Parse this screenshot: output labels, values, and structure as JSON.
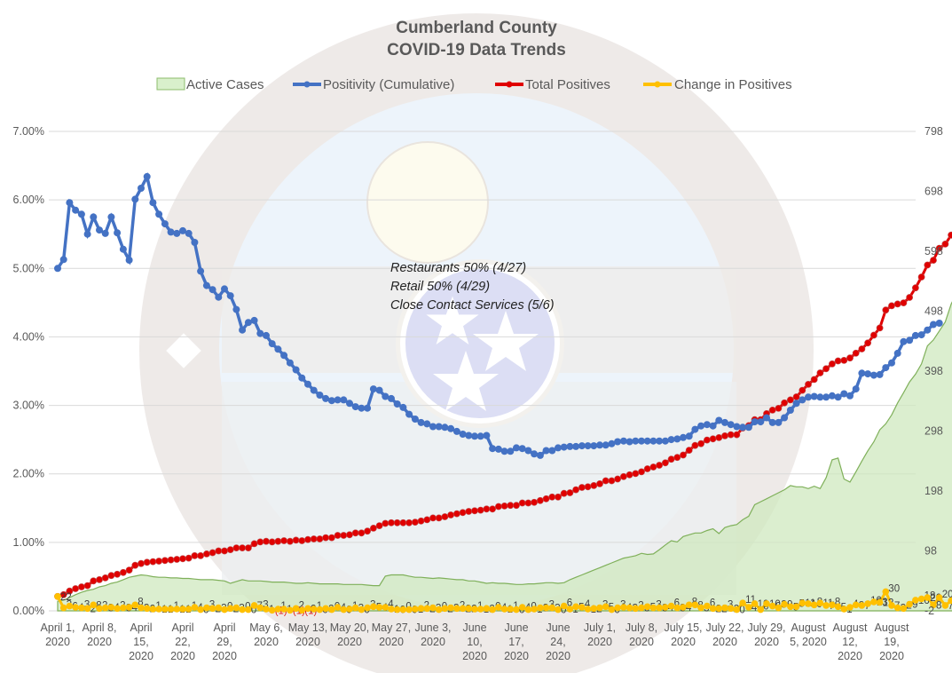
{
  "chart_data": {
    "type": "line",
    "title": "Cumberland County",
    "subtitle": "COVID-19 Data Trends",
    "legend": {
      "placement": "top",
      "entries": [
        {
          "name": "Active Cases",
          "kind": "area",
          "color": "#a9d18e"
        },
        {
          "name": "Positivity (Cumulative)",
          "kind": "line",
          "color": "#4472c4"
        },
        {
          "name": "Total Positives",
          "kind": "line",
          "color": "#e00000"
        },
        {
          "name": "Change in Positives",
          "kind": "line",
          "color": "#ffc000"
        }
      ]
    },
    "annotation": [
      "Restaurants 50% (4/27)",
      "Retail 50% (4/29)",
      "Close Contact Services (5/6)"
    ],
    "y_left": {
      "label": "",
      "range": [
        0,
        0.07
      ],
      "ticks": [
        "0.00%",
        "1.00%",
        "2.00%",
        "3.00%",
        "4.00%",
        "5.00%",
        "6.00%",
        "7.00%"
      ]
    },
    "y_right": {
      "label": "",
      "range": [
        -2,
        798
      ],
      "ticks": [
        "-2",
        "98",
        "198",
        "298",
        "398",
        "498",
        "598",
        "698",
        "798"
      ]
    },
    "grid": true,
    "x_ticks": [
      [
        "April 1,",
        "2020"
      ],
      [
        "April 8,",
        "2020"
      ],
      [
        "April",
        "15,",
        "2020"
      ],
      [
        "April",
        "22,",
        "2020"
      ],
      [
        "April",
        "29,",
        "2020"
      ],
      [
        "May 6,",
        "2020"
      ],
      [
        "May 13,",
        "2020"
      ],
      [
        "May 20,",
        "2020"
      ],
      [
        "May 27,",
        "2020"
      ],
      [
        "June 3,",
        "2020"
      ],
      [
        "June",
        "10,",
        "2020"
      ],
      [
        "June",
        "17,",
        "2020"
      ],
      [
        "June",
        "24,",
        "2020"
      ],
      [
        "July 1,",
        "2020"
      ],
      [
        "July 8,",
        "2020"
      ],
      [
        "July 15,",
        "2020"
      ],
      [
        "July 22,",
        "2020"
      ],
      [
        "July 29,",
        "2020"
      ],
      [
        "August",
        "5, 2020"
      ],
      [
        "August",
        "12,",
        "2020"
      ],
      [
        "August",
        "19,",
        "2020"
      ]
    ],
    "x_start": "2020-04-01",
    "x_days": 144,
    "series": {
      "positivity_pct": [
        5.0,
        5.13,
        5.96,
        5.85,
        5.79,
        5.5,
        5.75,
        5.56,
        5.51,
        5.75,
        5.52,
        5.28,
        5.12,
        6.01,
        6.17,
        6.34,
        5.96,
        5.79,
        5.65,
        5.53,
        5.51,
        5.55,
        5.51,
        5.38,
        4.96,
        4.75,
        4.69,
        4.58,
        4.7,
        4.6,
        4.4,
        4.1,
        4.21,
        4.24,
        4.05,
        4.02,
        3.9,
        3.82,
        3.73,
        3.62,
        3.52,
        3.4,
        3.31,
        3.22,
        3.15,
        3.1,
        3.07,
        3.08,
        3.08,
        3.03,
        2.98,
        2.96,
        2.96,
        3.24,
        3.22,
        3.13,
        3.1,
        3.02,
        2.97,
        2.87,
        2.8,
        2.75,
        2.73,
        2.69,
        2.69,
        2.68,
        2.66,
        2.62,
        2.58,
        2.56,
        2.55,
        2.55,
        2.56,
        2.37,
        2.36,
        2.33,
        2.33,
        2.38,
        2.37,
        2.34,
        2.29,
        2.27,
        2.34,
        2.34,
        2.38,
        2.39,
        2.4,
        2.4,
        2.41,
        2.41,
        2.41,
        2.42,
        2.42,
        2.44,
        2.47,
        2.48,
        2.47,
        2.48,
        2.48,
        2.48,
        2.48,
        2.48,
        2.48,
        2.5,
        2.51,
        2.53,
        2.55,
        2.65,
        2.7,
        2.72,
        2.7,
        2.78,
        2.75,
        2.72,
        2.69,
        2.68,
        2.68,
        2.76,
        2.76,
        2.82,
        2.75,
        2.75,
        2.82,
        2.93,
        3.03,
        3.08,
        3.12,
        3.13,
        3.12,
        3.12,
        3.14,
        3.12,
        3.17,
        3.14,
        3.24,
        3.47,
        3.46,
        3.44,
        3.45,
        3.55,
        3.62,
        3.76,
        3.93,
        3.95,
        4.02,
        4.03,
        4.1,
        4.18,
        4.2
      ],
      "total_positives": [
        22,
        25,
        31,
        35,
        38,
        40,
        48,
        50,
        53,
        57,
        59,
        62,
        66,
        74,
        77,
        79,
        80,
        81,
        82,
        83,
        84,
        85,
        86,
        90,
        90,
        93,
        95,
        98,
        98,
        100,
        103,
        103,
        103,
        110,
        113,
        114,
        113,
        114,
        115,
        114,
        116,
        115,
        117,
        118,
        118,
        120,
        120,
        124,
        124,
        125,
        128,
        128,
        131,
        136,
        140,
        144,
        145,
        145,
        145,
        145,
        146,
        148,
        150,
        153,
        153,
        155,
        158,
        160,
        162,
        164,
        165,
        166,
        168,
        168,
        172,
        173,
        174,
        174,
        178,
        178,
        179,
        182,
        185,
        188,
        188,
        194,
        195,
        200,
        204,
        205,
        207,
        210,
        215,
        215,
        218,
        222,
        225,
        227,
        230,
        235,
        238,
        241,
        245,
        251,
        254,
        258,
        266,
        274,
        277,
        283,
        285,
        287,
        290,
        292,
        292,
        303,
        307,
        317,
        317,
        327,
        333,
        336,
        345,
        350,
        355,
        366,
        376,
        384,
        395,
        402,
        410,
        415,
        416,
        420,
        428,
        435,
        445,
        458,
        470,
        500,
        507,
        510,
        512,
        521,
        537,
        555,
        575,
        583,
        603,
        610,
        625,
        640,
        660
      ]
    },
    "active_cases": [
      14,
      16,
      20,
      25,
      29,
      32,
      34,
      38,
      40,
      44,
      46,
      50,
      54,
      56,
      58,
      57,
      55,
      54,
      54,
      53,
      53,
      52,
      52,
      51,
      50,
      50,
      50,
      49,
      48,
      44,
      47,
      50,
      48,
      48,
      48,
      47,
      46,
      46,
      46,
      45,
      44,
      44,
      45,
      44,
      43,
      43,
      43,
      43,
      42,
      42,
      42,
      42,
      41,
      40,
      40,
      56,
      58,
      58,
      58,
      56,
      54,
      54,
      53,
      52,
      53,
      52,
      51,
      50,
      50,
      48,
      48,
      46,
      44,
      45,
      44,
      44,
      43,
      42,
      42,
      43,
      43,
      44,
      45,
      45,
      44,
      45,
      50,
      54,
      58,
      62,
      66,
      70,
      74,
      78,
      82,
      86,
      88,
      90,
      94,
      92,
      93,
      100,
      108,
      115,
      113,
      122,
      125,
      128,
      128,
      132,
      135,
      127,
      137,
      140,
      142,
      150,
      156,
      175,
      180,
      185,
      190,
      195,
      200,
      207,
      205,
      205,
      202,
      206,
      202,
      220,
      250,
      253,
      218,
      213,
      230,
      248,
      265,
      280,
      300,
      310,
      325,
      345,
      362,
      380,
      393,
      410,
      440,
      450,
      465,
      480,
      510,
      530,
      560,
      572,
      575
    ]
  }
}
